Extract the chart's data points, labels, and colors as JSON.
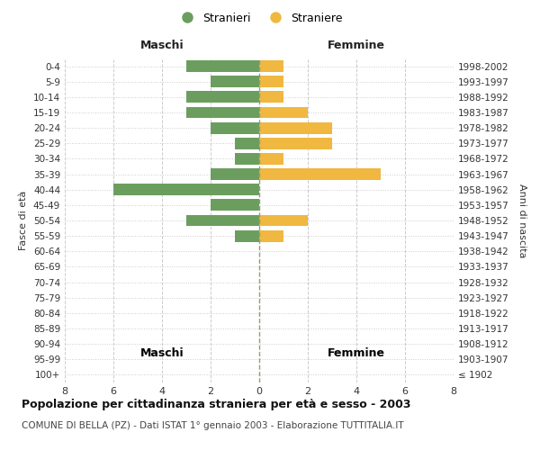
{
  "age_groups": [
    "100+",
    "95-99",
    "90-94",
    "85-89",
    "80-84",
    "75-79",
    "70-74",
    "65-69",
    "60-64",
    "55-59",
    "50-54",
    "45-49",
    "40-44",
    "35-39",
    "30-34",
    "25-29",
    "20-24",
    "15-19",
    "10-14",
    "5-9",
    "0-4"
  ],
  "birth_years": [
    "≤ 1902",
    "1903-1907",
    "1908-1912",
    "1913-1917",
    "1918-1922",
    "1923-1927",
    "1928-1932",
    "1933-1937",
    "1938-1942",
    "1943-1947",
    "1948-1952",
    "1953-1957",
    "1958-1962",
    "1963-1967",
    "1968-1972",
    "1973-1977",
    "1978-1982",
    "1983-1987",
    "1988-1992",
    "1993-1997",
    "1998-2002"
  ],
  "males": [
    0,
    0,
    0,
    0,
    0,
    0,
    0,
    0,
    0,
    1,
    3,
    2,
    6,
    2,
    1,
    1,
    2,
    3,
    3,
    2,
    3
  ],
  "females": [
    0,
    0,
    0,
    0,
    0,
    0,
    0,
    0,
    0,
    1,
    2,
    0,
    0,
    5,
    1,
    3,
    3,
    2,
    1,
    1,
    1
  ],
  "male_color": "#6b9e5e",
  "female_color": "#f0b840",
  "xlim": 8,
  "header_left": "Maschi",
  "header_right": "Femmine",
  "ylabel_left": "Fasce di età",
  "ylabel_right": "Anni di nascita",
  "title": "Popolazione per cittadinanza straniera per età e sesso - 2003",
  "subtitle": "COMUNE DI BELLA (PZ) - Dati ISTAT 1° gennaio 2003 - Elaborazione TUTTITALIA.IT",
  "legend_male": "Stranieri",
  "legend_female": "Straniere",
  "bg_color": "#ffffff",
  "grid_color": "#cccccc",
  "bar_height": 0.75
}
